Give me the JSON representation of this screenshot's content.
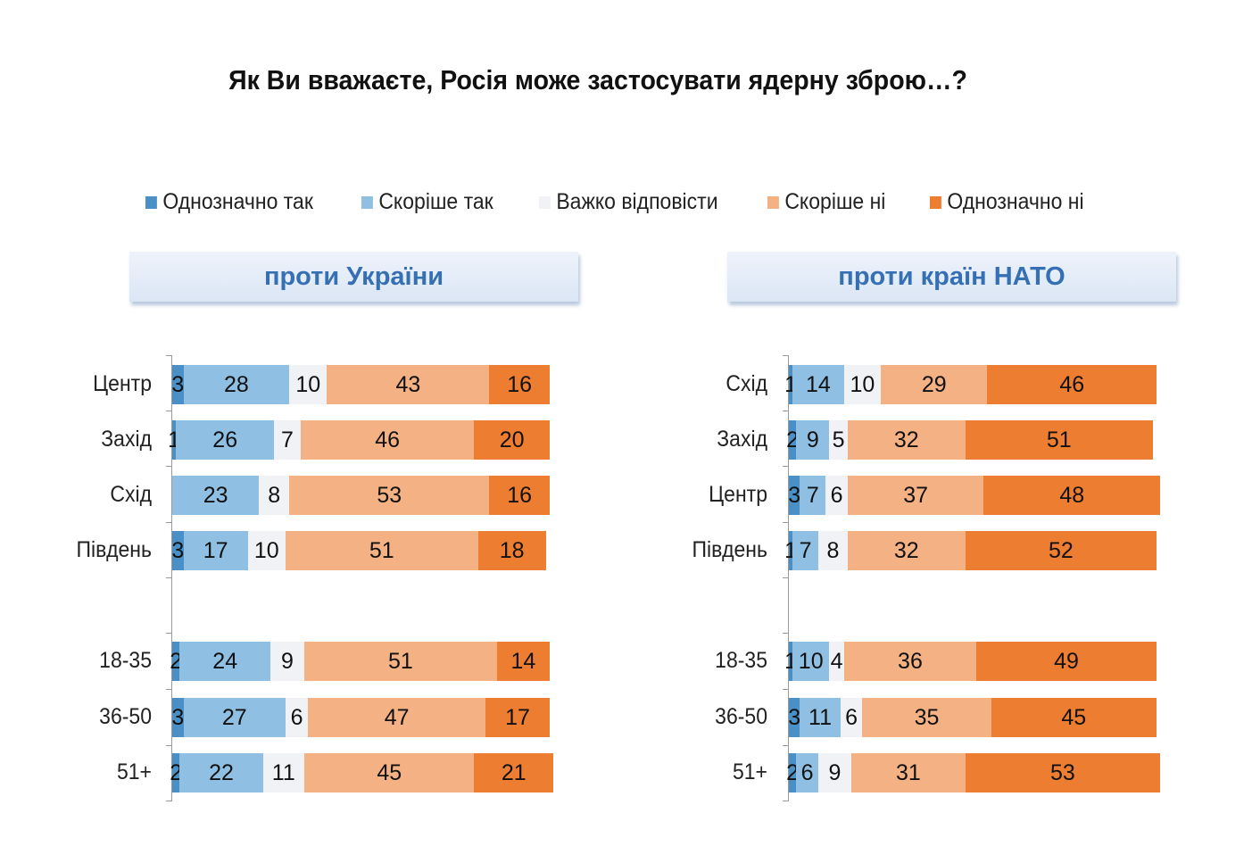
{
  "title": "Як Ви вважаєте, Росія може застосувати ядерну зброю…?",
  "chart_data": [
    {
      "type": "bar",
      "stacked": true,
      "orientation": "horizontal",
      "title": "проти України",
      "categories": [
        "Центр",
        "Захід",
        "Схід",
        "Південь",
        "",
        "18-35",
        "36-50",
        "51+"
      ],
      "series": [
        {
          "name": "Однозначно так",
          "color": "#4a8fc6",
          "values": [
            3,
            1,
            0,
            3,
            null,
            2,
            3,
            2
          ]
        },
        {
          "name": "Скоріше так",
          "color": "#8fbfe2",
          "values": [
            28,
            26,
            23,
            17,
            null,
            24,
            27,
            22
          ]
        },
        {
          "name": "Важко відповісти",
          "color": "#f0f2f5",
          "values": [
            10,
            7,
            8,
            10,
            null,
            9,
            6,
            11
          ]
        },
        {
          "name": "Скоріше ні",
          "color": "#f4b183",
          "values": [
            43,
            46,
            53,
            51,
            null,
            51,
            47,
            45
          ]
        },
        {
          "name": "Однозначно ні",
          "color": "#ed7d31",
          "values": [
            16,
            20,
            16,
            18,
            null,
            14,
            17,
            21
          ]
        }
      ],
      "xlim": [
        0,
        100
      ],
      "legend": "top"
    },
    {
      "type": "bar",
      "stacked": true,
      "orientation": "horizontal",
      "title": "проти країн НАТО",
      "categories": [
        "Схід",
        "Захід",
        "Центр",
        "Південь",
        "",
        "18-35",
        "36-50",
        "51+"
      ],
      "series": [
        {
          "name": "Однозначно так",
          "color": "#4a8fc6",
          "values": [
            1,
            2,
            3,
            1,
            null,
            1,
            3,
            2
          ]
        },
        {
          "name": "Скоріше так",
          "color": "#8fbfe2",
          "values": [
            14,
            9,
            7,
            7,
            null,
            10,
            11,
            6
          ]
        },
        {
          "name": "Важко відповісти",
          "color": "#f0f2f5",
          "values": [
            10,
            5,
            6,
            8,
            null,
            4,
            6,
            9
          ]
        },
        {
          "name": "Скоріше ні",
          "color": "#f4b183",
          "values": [
            29,
            32,
            37,
            32,
            null,
            36,
            35,
            31
          ]
        },
        {
          "name": "Однозначно ні",
          "color": "#ed7d31",
          "values": [
            46,
            51,
            48,
            52,
            null,
            49,
            45,
            53
          ]
        }
      ],
      "xlim": [
        0,
        100
      ],
      "legend": "top"
    }
  ]
}
